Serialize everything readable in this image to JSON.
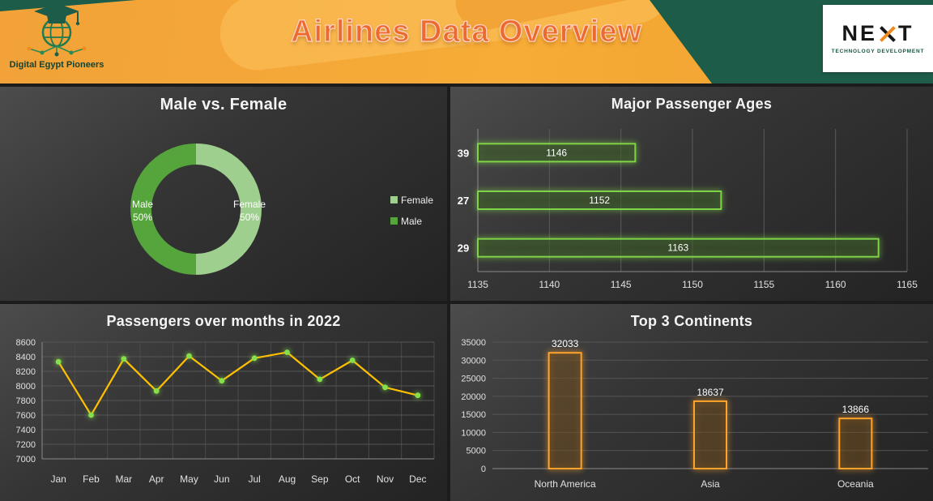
{
  "header": {
    "title": "Airlines Data Overview",
    "left_logo": {
      "label": "Digital Egypt Pioneers"
    },
    "right_logo": {
      "brand_left": "NE",
      "brand_x": "X",
      "brand_right": "T",
      "subtitle": "TECHNOLOGY DEVELOPMENT"
    }
  },
  "colors": {
    "header_orange": "#f3a437",
    "header_green": "#1d5c49",
    "title_orange": "#ec6a2d",
    "accent_green": "#7ed348",
    "accent_orange": "#ffa32b",
    "line_yellow": "#ffc000"
  },
  "chart_data": [
    {
      "id": "gender",
      "type": "pie",
      "donut": true,
      "title": "Male vs. Female",
      "slices": [
        {
          "label": "Female",
          "pct": 50,
          "color": "#9fcf8e"
        },
        {
          "label": "Male",
          "pct": 50,
          "color": "#55a43c"
        }
      ],
      "legend": [
        {
          "label": "Female",
          "color": "#9fcf8e"
        },
        {
          "label": "Male",
          "color": "#55a43c"
        }
      ],
      "legend_position": "right"
    },
    {
      "id": "ages",
      "type": "bar",
      "orientation": "horizontal",
      "title": "Major Passenger Ages",
      "categories": [
        "39",
        "27",
        "29"
      ],
      "values": [
        1146,
        1152,
        1163
      ],
      "xlim": [
        1135,
        1165
      ],
      "xticks": [
        1135,
        1140,
        1145,
        1150,
        1155,
        1160,
        1165
      ],
      "bar_color": "#7ed348",
      "grid": true
    },
    {
      "id": "months",
      "type": "line",
      "title": "Passengers over months in 2022",
      "categories": [
        "Jan",
        "Feb",
        "Mar",
        "Apr",
        "May",
        "Jun",
        "Jul",
        "Aug",
        "Sep",
        "Oct",
        "Nov",
        "Dec"
      ],
      "values": [
        8330,
        7600,
        8370,
        7930,
        8410,
        8070,
        8380,
        8460,
        8090,
        8350,
        7980,
        7870
      ],
      "ylim": [
        7000,
        8600
      ],
      "yticks": [
        7000,
        7200,
        7400,
        7600,
        7800,
        8000,
        8200,
        8400,
        8600
      ],
      "line_color": "#ffc000",
      "marker_color": "#86e04b",
      "grid": true
    },
    {
      "id": "continents",
      "type": "bar",
      "orientation": "vertical",
      "title": "Top 3 Continents",
      "categories": [
        "North America",
        "Asia",
        "Oceania"
      ],
      "values": [
        32033,
        18637,
        13866
      ],
      "ylim": [
        0,
        35000
      ],
      "yticks": [
        0,
        5000,
        10000,
        15000,
        20000,
        25000,
        30000,
        35000
      ],
      "bar_color": "#ffa32b",
      "grid": true
    }
  ]
}
